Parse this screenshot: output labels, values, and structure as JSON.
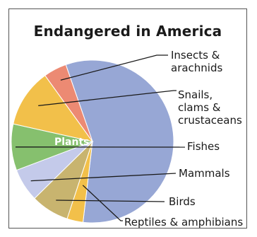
{
  "chart_data": {
    "type": "pie",
    "title": "Endangered in America",
    "slices": [
      {
        "label": "Plants",
        "lines": [
          "Plants"
        ],
        "value": 57.2,
        "color": "#97a7d5"
      },
      {
        "label": "Reptiles & amphibians",
        "lines": [
          "Reptiles & amphibians"
        ],
        "value": 3.2,
        "color": "#f2c04a"
      },
      {
        "label": "Birds",
        "lines": [
          "Birds"
        ],
        "value": 7.6,
        "color": "#c8b46f"
      },
      {
        "label": "Mammals",
        "lines": [
          "Mammals"
        ],
        "value": 6.6,
        "color": "#c4caea"
      },
      {
        "label": "Fishes",
        "lines": [
          "Fishes"
        ],
        "value": 9.2,
        "color": "#86c06e"
      },
      {
        "label": "Snails, clams & crustaceans",
        "lines": [
          "Snails,",
          "clams &",
          "crustaceans"
        ],
        "value": 11.6,
        "color": "#f2c04a"
      },
      {
        "label": "Insects & arachnids",
        "lines": [
          "Insects &",
          "arachnids"
        ],
        "value": 4.6,
        "color": "#ec8a73"
      }
    ]
  }
}
